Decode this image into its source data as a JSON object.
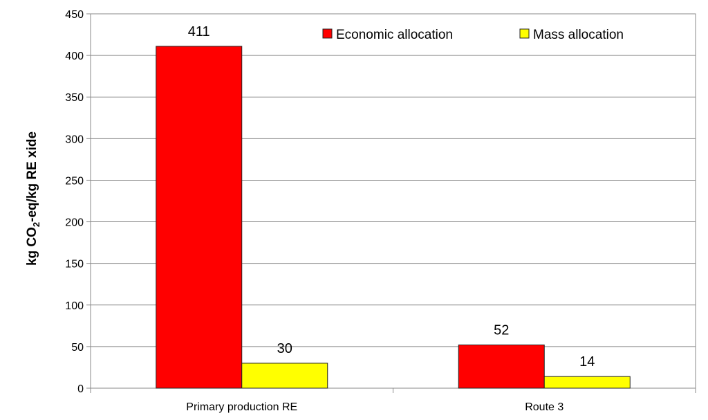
{
  "chart_data": {
    "type": "bar",
    "categories": [
      "Primary production RE",
      "Route 3"
    ],
    "series": [
      {
        "name": "Economic allocation",
        "color": "#ff0000",
        "values": [
          411,
          52
        ]
      },
      {
        "name": "Mass allocation",
        "color": "#ffff00",
        "values": [
          30,
          14
        ]
      }
    ],
    "ylabel": {
      "prefix": "kg CO",
      "subscript": "2",
      "suffix": "-eq/kg RE xide"
    },
    "ylim": [
      0,
      450
    ],
    "yticks": [
      0,
      50,
      100,
      150,
      200,
      250,
      300,
      350,
      400,
      450
    ],
    "grid": true,
    "legend_position": "top-right"
  }
}
